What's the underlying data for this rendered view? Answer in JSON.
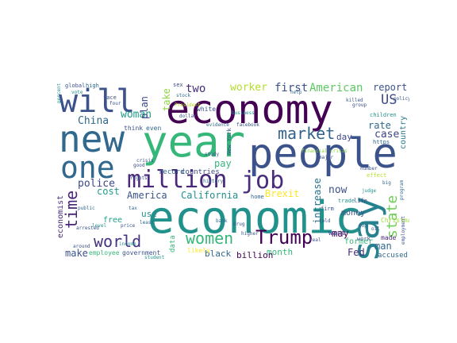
{
  "words": [
    {
      "text": "economy",
      "color": "#440154"
    },
    {
      "text": "economic",
      "color": "#21918c"
    },
    {
      "text": "year",
      "color": "#35b779"
    },
    {
      "text": "people",
      "color": "#3b528b"
    },
    {
      "text": "new",
      "color": "#31688e"
    },
    {
      "text": "say",
      "color": "#26828e"
    },
    {
      "text": "will",
      "color": "#3b528b"
    },
    {
      "text": "one",
      "color": "#31688e"
    },
    {
      "text": "million",
      "color": "#482878"
    },
    {
      "text": "job",
      "color": "#472d7b"
    },
    {
      "text": "Trump",
      "color": "#440154"
    },
    {
      "text": "women",
      "color": "#35b779"
    },
    {
      "text": "world",
      "color": "#46327e"
    },
    {
      "text": "state",
      "color": "#6ece58"
    },
    {
      "text": "market",
      "color": "#33638d"
    },
    {
      "text": "time",
      "color": "#482575"
    },
    {
      "text": "US",
      "color": "#3e4a89"
    },
    {
      "text": "American",
      "color": "#5ec962"
    },
    {
      "text": "first",
      "color": "#3b528b"
    },
    {
      "text": "two",
      "color": "#472c7a"
    },
    {
      "text": "worker",
      "color": "#b5de2b"
    },
    {
      "text": "China",
      "color": "#31688e"
    },
    {
      "text": "woman",
      "color": "#1f9e89"
    },
    {
      "text": "plan",
      "color": "#3e4989"
    },
    {
      "text": "take",
      "color": "#8fd744"
    },
    {
      "text": "report",
      "color": "#3b528b"
    },
    {
      "text": "rate",
      "color": "#31688e"
    },
    {
      "text": "case",
      "color": "#414487"
    },
    {
      "text": "country",
      "color": "#2a788e"
    },
    {
      "text": "police",
      "color": "#3e4989"
    },
    {
      "text": "cost",
      "color": "#1f9e89"
    },
    {
      "text": "America",
      "color": "#3b528b"
    },
    {
      "text": "California",
      "color": "#21918c"
    },
    {
      "text": "pay",
      "color": "#35b779"
    },
    {
      "text": "Brexit",
      "color": "#fde725"
    },
    {
      "text": "now",
      "color": "#3b528b"
    },
    {
      "text": "increase",
      "color": "#2c728e"
    },
    {
      "text": "may",
      "color": "#440154"
    },
    {
      "text": "day",
      "color": "#3e4989"
    },
    {
      "text": "man",
      "color": "#31688e"
    },
    {
      "text": "Fed",
      "color": "#482878"
    },
    {
      "text": "month",
      "color": "#35b779"
    },
    {
      "text": "billion",
      "color": "#440154"
    },
    {
      "text": "black",
      "color": "#31688e"
    },
    {
      "text": "make",
      "color": "#3b528b"
    },
    {
      "text": "use",
      "color": "#21918c"
    },
    {
      "text": "free",
      "color": "#1f9e89"
    },
    {
      "text": "economist",
      "color": "#472c7a"
    },
    {
      "text": "money",
      "color": "#3b528b"
    },
    {
      "text": "want",
      "color": "#433e85"
    },
    {
      "text": "former",
      "color": "#35b779"
    },
    {
      "text": "accused",
      "color": "#31688e"
    },
    {
      "text": "made",
      "color": "#482878"
    },
    {
      "text": "Christmas",
      "color": "#a0da39"
    },
    {
      "text": "government",
      "color": "#3b528b"
    },
    {
      "text": "employee",
      "color": "#35b779"
    },
    {
      "text": "likely",
      "color": "#fde725"
    },
    {
      "text": "record",
      "color": "#31688e"
    },
    {
      "text": "countries",
      "color": "#3e4989"
    },
    {
      "text": "data",
      "color": "#35b779"
    },
    {
      "text": "think",
      "color": "#3b528b"
    },
    {
      "text": "even",
      "color": "#31688e"
    },
    {
      "text": "white",
      "color": "#3b528b"
    },
    {
      "text": "home",
      "color": "#31688e"
    },
    {
      "text": "life",
      "color": "#3e4989"
    },
    {
      "text": "trade",
      "color": "#21918c"
    },
    {
      "text": "firm",
      "color": "#3b528b"
    },
    {
      "text": "global",
      "color": "#3b528b"
    },
    {
      "text": "high",
      "color": "#31688e"
    },
    {
      "text": "vote",
      "color": "#21918c"
    },
    {
      "text": "face",
      "color": "#3b528b"
    },
    {
      "text": "sex",
      "color": "#3e4989"
    },
    {
      "text": "help",
      "color": "#31688e"
    },
    {
      "text": "children",
      "color": "#21918c"
    },
    {
      "text": "New York",
      "color": "#3b528b"
    },
    {
      "text": "https",
      "color": "#31688e"
    },
    {
      "text": "work",
      "color": "#3b528b"
    },
    {
      "text": "effect",
      "color": "#b5de2b"
    },
    {
      "text": "crisis",
      "color": "#3b528b"
    },
    {
      "text": "financial crisis",
      "color": "#8fd744"
    },
    {
      "text": "student",
      "color": "#21918c"
    },
    {
      "text": "price",
      "color": "#3b528b"
    },
    {
      "text": "income",
      "color": "#21918c"
    },
    {
      "text": "least",
      "color": "#31688e"
    },
    {
      "text": "number",
      "color": "#3b528b"
    },
    {
      "text": "arrested",
      "color": "#3b528b"
    },
    {
      "text": "public",
      "color": "#31688e"
    },
    {
      "text": "study",
      "color": "#3b528b"
    },
    {
      "text": "President",
      "color": "#b5de2b"
    },
    {
      "text": "facebook",
      "color": "#3b528b"
    },
    {
      "text": "evidence",
      "color": "#31688e"
    },
    {
      "text": "dollar",
      "color": "#3b528b"
    },
    {
      "text": "stock",
      "color": "#31688e"
    },
    {
      "text": "four",
      "color": "#3b528b"
    },
    {
      "text": "percent",
      "color": "#21918c"
    },
    {
      "text": "group",
      "color": "#3b528b"
    },
    {
      "text": "big",
      "color": "#31688e"
    },
    {
      "text": "level",
      "color": "#21918c"
    },
    {
      "text": "around",
      "color": "#3b528b"
    },
    {
      "text": "major",
      "color": "#3b528b"
    },
    {
      "text": "history",
      "color": "#31688e"
    },
    {
      "text": "rights",
      "color": "#3b528b"
    },
    {
      "text": "bank",
      "color": "#31688e"
    },
    {
      "text": "drug",
      "color": "#3b528b"
    },
    {
      "text": "higher",
      "color": "#3b528b"
    },
    {
      "text": "judge",
      "color": "#21918c"
    },
    {
      "text": "policy",
      "color": "#3b528b"
    },
    {
      "text": "program",
      "color": "#31688e"
    },
    {
      "text": "employment",
      "color": "#3b528b"
    },
    {
      "text": "real",
      "color": "#3b528b"
    },
    {
      "text": "good",
      "color": "#3b528b"
    },
    {
      "text": "tax",
      "color": "#31688e"
    },
    {
      "text": "killed",
      "color": "#3b528b"
    },
    {
      "text": "business",
      "color": "#21918c"
    },
    {
      "text": "told",
      "color": "#3b528b"
    },
    {
      "text": "top",
      "color": "#31688e"
    },
    {
      "text": "oil",
      "color": "#3b528b"
    }
  ]
}
